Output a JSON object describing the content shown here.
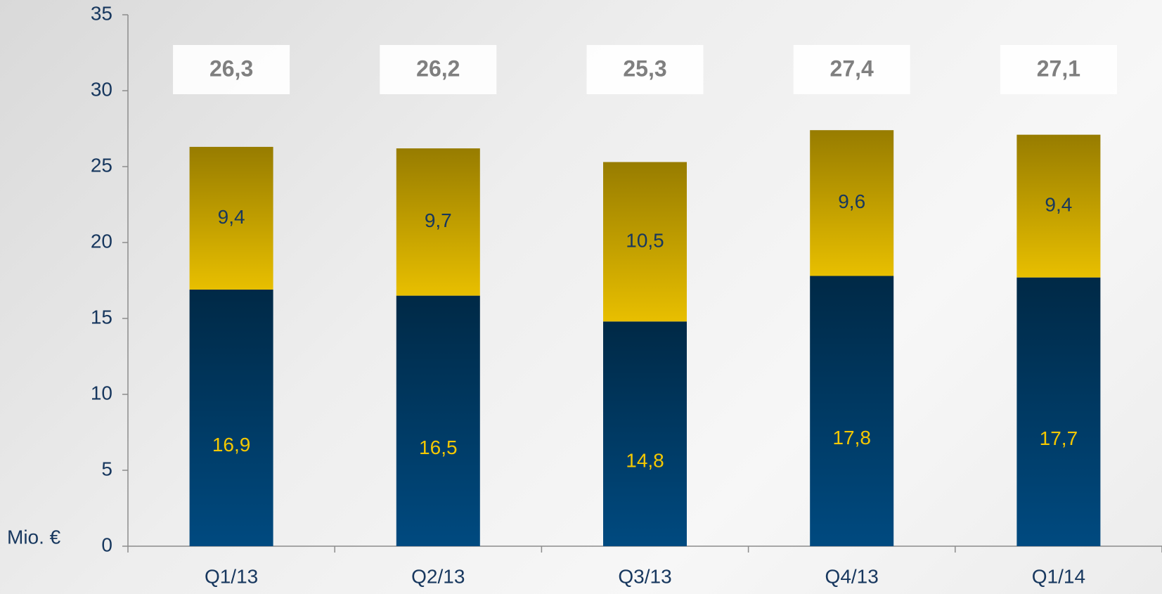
{
  "chart_data": {
    "type": "stacked-bar",
    "categories": [
      "Q1/13",
      "Q2/13",
      "Q3/13",
      "Q4/13",
      "Q1/14"
    ],
    "series": [
      {
        "color": "#004a80",
        "values": [
          16.9,
          16.5,
          14.8,
          17.8,
          17.7
        ],
        "value_labels": [
          "16,9",
          "16,5",
          "14,8",
          "17,8",
          "17,7"
        ]
      },
      {
        "color": "#e8bf00",
        "values": [
          9.4,
          9.7,
          10.5,
          9.6,
          9.4
        ],
        "value_labels": [
          "9,4",
          "9,7",
          "10,5",
          "9,6",
          "9,4"
        ]
      }
    ],
    "totals": {
      "values": [
        26.3,
        26.2,
        25.3,
        27.4,
        27.1
      ],
      "value_labels": [
        "26,3",
        "26,2",
        "25,3",
        "27,4",
        "27,1"
      ]
    },
    "y_unit": "Mio. €",
    "ylim": [
      0,
      35
    ],
    "yticks": [
      0,
      5,
      10,
      15,
      20,
      25,
      30,
      35
    ]
  }
}
